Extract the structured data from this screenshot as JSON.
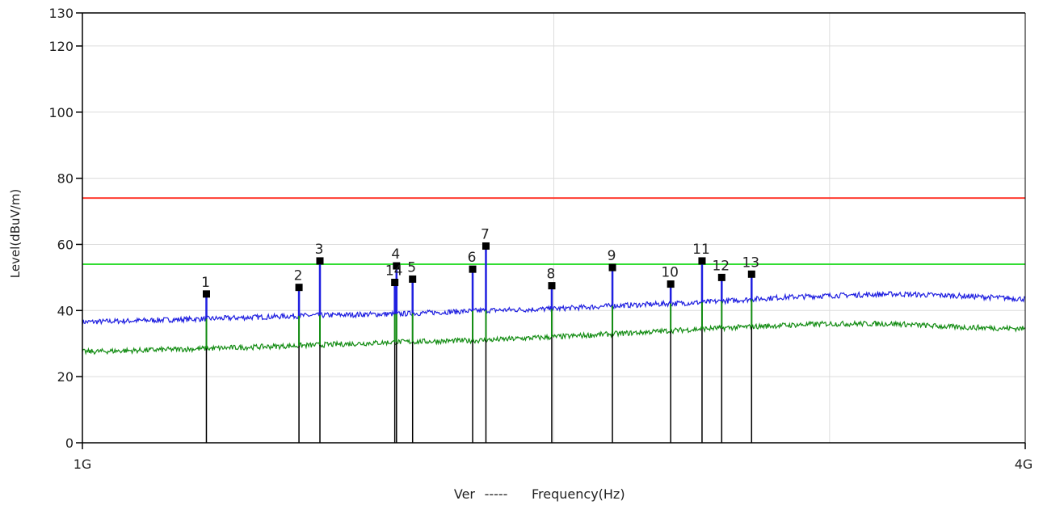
{
  "chart_data": {
    "type": "line",
    "xlabel": "Frequency(Hz)",
    "ylabel": "Level(dBuV/m)",
    "legend_prefix": "Ver",
    "legend_dash": "-----",
    "x_scale": "log",
    "xlim_hz": [
      1000000000,
      4000000000
    ],
    "x_tick_labels": [
      "1G",
      "4G"
    ],
    "x_gridlines_hz": [
      2000000000,
      3000000000
    ],
    "ylim": [
      0,
      130
    ],
    "y_ticks": [
      0,
      20,
      40,
      60,
      80,
      100,
      120,
      130
    ],
    "grid": true,
    "limit_lines": [
      {
        "value": 74,
        "color": "#ff3b30"
      },
      {
        "value": 54,
        "color": "#33dd33"
      }
    ],
    "series": [
      {
        "color": "#1f1fe0",
        "x_hz": [
          1000000000,
          1200000000,
          1400000000,
          1600000000,
          1800000000,
          2000000000,
          2200000000,
          2500000000,
          2800000000,
          3000000000,
          3300000000,
          3600000000,
          4000000000
        ],
        "values": [
          36.5,
          37.5,
          38.5,
          39,
          40,
          40.5,
          41.5,
          42.5,
          44,
          44.5,
          45,
          44.5,
          43.5
        ]
      },
      {
        "color": "#138c13",
        "x_hz": [
          1000000000,
          1200000000,
          1400000000,
          1600000000,
          1800000000,
          2000000000,
          2200000000,
          2500000000,
          2800000000,
          3000000000,
          3300000000,
          3600000000,
          4000000000
        ],
        "values": [
          27.5,
          28.5,
          29.5,
          30.5,
          31,
          32,
          33,
          34.5,
          35.5,
          36,
          36,
          35,
          34.5
        ]
      }
    ],
    "markers": [
      {
        "label": "1",
        "x_hz": 1200000000,
        "value": 45
      },
      {
        "label": "2",
        "x_hz": 1375000000,
        "value": 47
      },
      {
        "label": "3",
        "x_hz": 1418000000,
        "value": 55
      },
      {
        "label": "4",
        "x_hz": 1587000000,
        "value": 53.5
      },
      {
        "label": "14",
        "x_hz": 1583000000,
        "value": 48.5
      },
      {
        "label": "5",
        "x_hz": 1625000000,
        "value": 49.5
      },
      {
        "label": "6",
        "x_hz": 1775000000,
        "value": 52.5
      },
      {
        "label": "7",
        "x_hz": 1810000000,
        "value": 59.5
      },
      {
        "label": "8",
        "x_hz": 1994000000,
        "value": 47.5
      },
      {
        "label": "9",
        "x_hz": 2180000000,
        "value": 53
      },
      {
        "label": "10",
        "x_hz": 2375000000,
        "value": 48
      },
      {
        "label": "11",
        "x_hz": 2487000000,
        "value": 55
      },
      {
        "label": "12",
        "x_hz": 2560000000,
        "value": 50
      },
      {
        "label": "13",
        "x_hz": 2675000000,
        "value": 51
      }
    ]
  }
}
